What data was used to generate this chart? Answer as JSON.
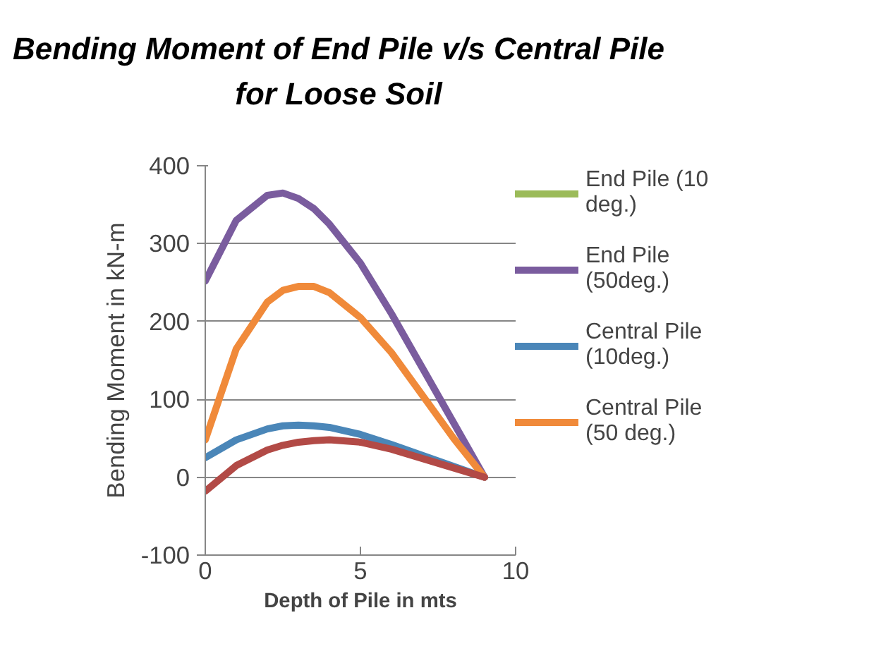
{
  "chart_data": {
    "type": "line",
    "title": "Bending Moment of End Pile v/s Central Pile for Loose Soil",
    "xlabel": "Depth of Pile in mts",
    "ylabel": "Bending Moment in kN-m",
    "x": [
      0,
      1,
      2,
      2.5,
      3,
      3.5,
      4,
      5,
      6,
      7,
      8,
      9
    ],
    "series": [
      {
        "name": "End Pile (10 deg.)",
        "color": "#9bbb59",
        "values": [
          null,
          null,
          null,
          null,
          null,
          null,
          null,
          null,
          null,
          null,
          null,
          null
        ]
      },
      {
        "name": "End Pile (50deg.)",
        "color": "#7a5c9e",
        "values": [
          252,
          330,
          362,
          365,
          358,
          345,
          325,
          275,
          210,
          140,
          70,
          0
        ]
      },
      {
        "name": "Central Pile (10deg.)",
        "color": "#4a86b8",
        "values": [
          25,
          48,
          62,
          66,
          67,
          66,
          64,
          55,
          42,
          28,
          14,
          0
        ]
      },
      {
        "name": "Central Pile (50 deg.)",
        "color": "#f08a3a",
        "values": [
          48,
          165,
          225,
          240,
          245,
          245,
          237,
          205,
          160,
          105,
          50,
          0
        ]
      },
      {
        "color": "#b24a46",
        "values": [
          -18,
          15,
          35,
          41,
          45,
          47,
          48,
          45,
          36,
          24,
          12,
          0
        ]
      }
    ],
    "xlim": [
      0,
      10
    ],
    "xticks": [
      0,
      5,
      10
    ],
    "ylim": [
      -100,
      400
    ],
    "yticks": [
      -100,
      0,
      100,
      200,
      300,
      400
    ],
    "grid": "y",
    "legend": "right",
    "marker": "none",
    "line_style": "solid"
  }
}
